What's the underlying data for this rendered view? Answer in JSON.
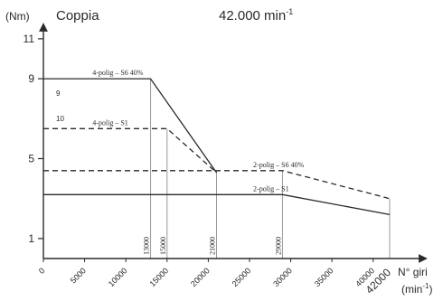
{
  "chart_data": {
    "type": "line",
    "title": "Coppia",
    "subtitle": "42.000 min",
    "subtitle_superscript": "-1",
    "ylabel": "(Nm)",
    "xlabel_line1": "N° giri",
    "xlabel_line2": "(min",
    "xlabel_line2_superscript": "-1",
    "xlabel_line2_close": ")",
    "xlim": [
      0,
      42500
    ],
    "ylim": [
      0,
      12
    ],
    "yticks": [
      1,
      5,
      9,
      11
    ],
    "xticks": [
      0,
      5000,
      10000,
      15000,
      20000,
      25000,
      30000,
      35000,
      40000
    ],
    "xtick_labels": [
      "0",
      "5000",
      "10000",
      "15000",
      "20000",
      "25000",
      "30000",
      "35000",
      "40000"
    ],
    "x_end_label": "42000",
    "curve_marks": [
      "9",
      "10"
    ],
    "grid": false,
    "series": [
      {
        "name": "4-polig – S6 40%",
        "style": "solid",
        "x": [
          0,
          13000,
          21000
        ],
        "y": [
          9,
          9,
          4.3
        ],
        "label_at": [
          2000,
          9
        ]
      },
      {
        "name": "4-polig – S1",
        "style": "dashed",
        "x": [
          0,
          15000,
          21000
        ],
        "y": [
          6.5,
          6.5,
          4.3
        ],
        "label_at": [
          2000,
          6.5
        ]
      },
      {
        "name": "2-polig – S6 40%",
        "style": "dashed",
        "x": [
          0,
          29000,
          42000
        ],
        "y": [
          4.4,
          4.4,
          3.0
        ],
        "label_at": [
          21500,
          4.4
        ]
      },
      {
        "name": "2-polig – S1",
        "style": "solid",
        "x": [
          0,
          29000,
          42000
        ],
        "y": [
          3.2,
          3.2,
          2.2
        ],
        "label_at": [
          21500,
          3.2
        ]
      }
    ],
    "reference_lines": [
      {
        "x": 13000,
        "label": "13000"
      },
      {
        "x": 15000,
        "label": "15000"
      },
      {
        "x": 21000,
        "label": "21000"
      },
      {
        "x": 29000,
        "label": "29000"
      },
      {
        "x": 42000,
        "label": ""
      }
    ],
    "colors": {
      "line": "#2a2a2a",
      "ref_line": "#9a9a9a",
      "axis": "#2a2a2a"
    }
  }
}
